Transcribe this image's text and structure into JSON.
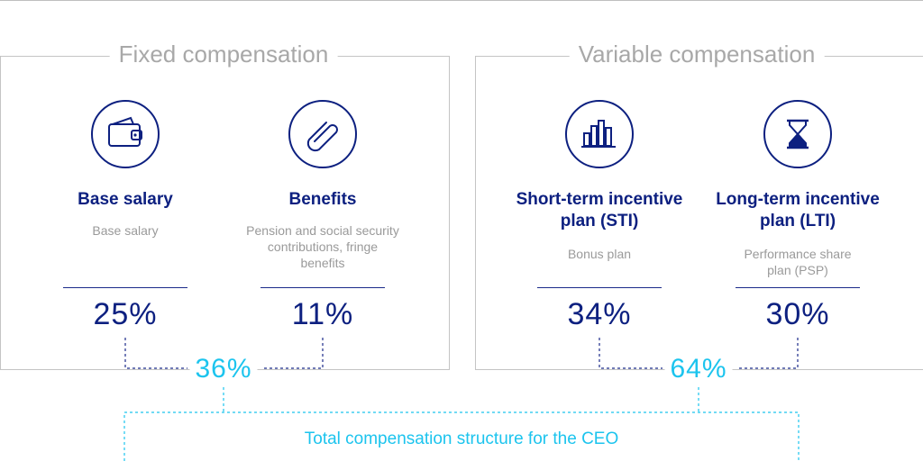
{
  "colors": {
    "navy": "#0d2080",
    "cyan": "#1cc4ee",
    "gray_text": "#9a9a9a",
    "box_border": "#c4c4c4"
  },
  "groups": [
    {
      "title": "Fixed compensation",
      "total_pct": "36%",
      "items": [
        {
          "icon": "wallet-icon",
          "title": "Base salary",
          "description": "Base salary",
          "pct": "25%"
        },
        {
          "icon": "paperclip-icon",
          "title": "Benefits",
          "description": "Pension and social security contributions, fringe benefits",
          "pct": "11%"
        }
      ]
    },
    {
      "title": "Variable compensation",
      "total_pct": "64%",
      "items": [
        {
          "icon": "bar-chart-icon",
          "title": "Short-term incentive plan (STI)",
          "description": "Bonus plan",
          "pct": "34%"
        },
        {
          "icon": "hourglass-icon",
          "title": "Long-term incentive plan (LTI)",
          "description": "Performance share plan (PSP)",
          "pct": "30%"
        }
      ]
    }
  ],
  "total_label": "Total compensation structure for the CEO"
}
